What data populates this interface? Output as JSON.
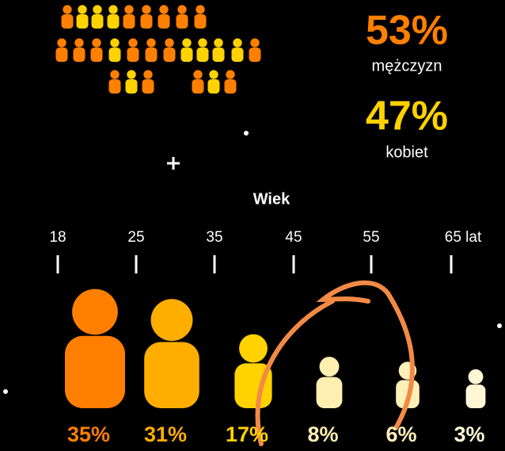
{
  "gender": {
    "men": {
      "value": "53%",
      "label": "mężczyzn",
      "color": "#ff7f00"
    },
    "women": {
      "value": "47%",
      "label": "kobiet",
      "color": "#ffd200"
    }
  },
  "age": {
    "title": "Wiek",
    "ticks": [
      "18",
      "25",
      "35",
      "45",
      "55",
      "65 lat"
    ],
    "groups": [
      {
        "value": 35,
        "label": "35%",
        "color": "#ff7f00"
      },
      {
        "value": 31,
        "label": "31%",
        "color": "#ffae00"
      },
      {
        "value": 17,
        "label": "17%",
        "color": "#ffd200"
      },
      {
        "value": 8,
        "label": "8%",
        "color": "#ffefb0"
      },
      {
        "value": 6,
        "label": "6%",
        "color": "#fff0b8"
      },
      {
        "value": 3,
        "label": "3%",
        "color": "#fff6d6"
      }
    ]
  }
}
